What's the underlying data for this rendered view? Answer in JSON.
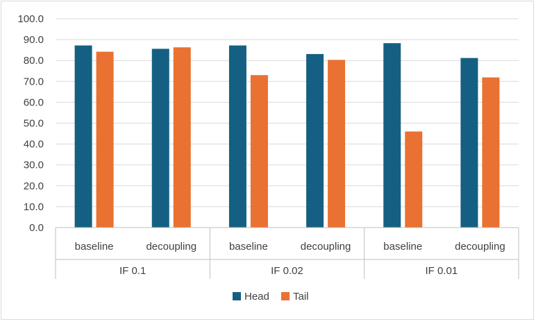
{
  "chart_data": {
    "type": "bar",
    "title": "",
    "xlabel": "",
    "ylabel": "",
    "ylim": [
      0,
      100
    ],
    "y_ticks": [
      "0.0",
      "10.0",
      "20.0",
      "30.0",
      "40.0",
      "50.0",
      "60.0",
      "70.0",
      "80.0",
      "90.0",
      "100.0"
    ],
    "grid": true,
    "legend_position": "bottom",
    "groups": [
      {
        "label": "IF 0.1",
        "categories": [
          "baseline",
          "decoupling"
        ]
      },
      {
        "label": "IF 0.02",
        "categories": [
          "baseline",
          "decoupling"
        ]
      },
      {
        "label": "IF 0.01",
        "categories": [
          "baseline",
          "decoupling"
        ]
      }
    ],
    "series": [
      {
        "name": "Head",
        "color": "#156082",
        "values": [
          87.2,
          85.6,
          87.2,
          83.1,
          88.3,
          81.2
        ]
      },
      {
        "name": "Tail",
        "color": "#E97132",
        "values": [
          84.2,
          86.3,
          73.0,
          80.3,
          46.0,
          71.9
        ]
      }
    ]
  }
}
